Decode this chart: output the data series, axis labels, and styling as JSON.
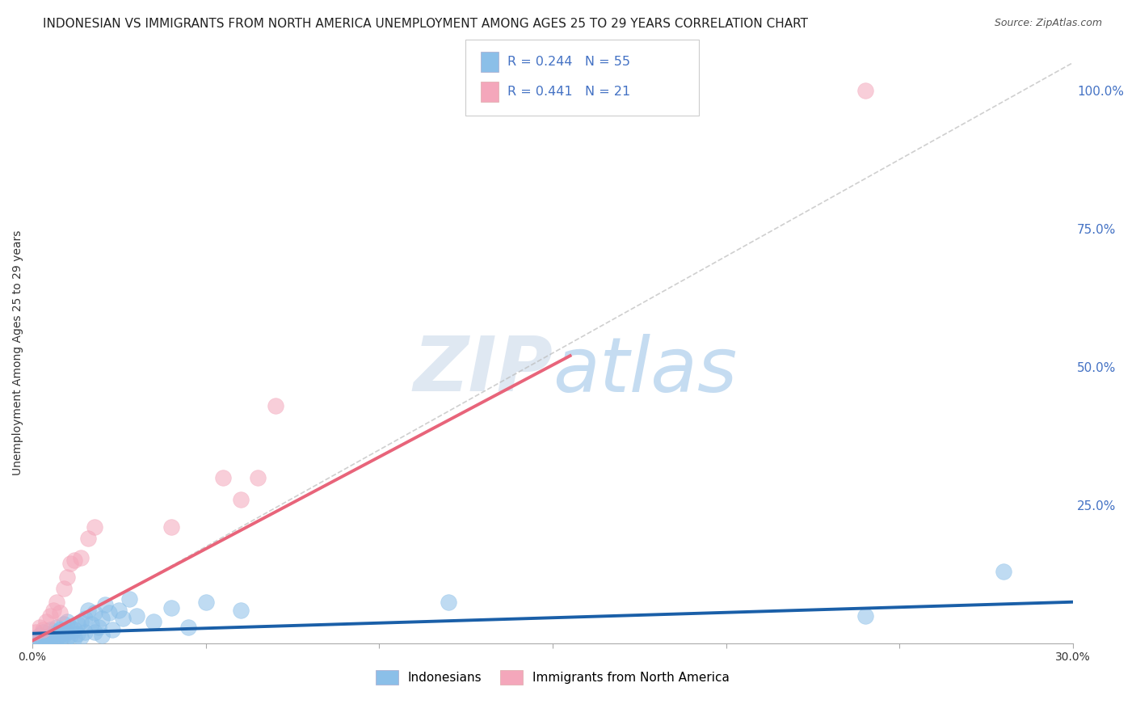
{
  "title": "INDONESIAN VS IMMIGRANTS FROM NORTH AMERICA UNEMPLOYMENT AMONG AGES 25 TO 29 YEARS CORRELATION CHART",
  "source": "Source: ZipAtlas.com",
  "ylabel": "Unemployment Among Ages 25 to 29 years",
  "xlim": [
    0.0,
    0.3
  ],
  "ylim": [
    0.0,
    1.05
  ],
  "xticks": [
    0.0,
    0.05,
    0.1,
    0.15,
    0.2,
    0.25,
    0.3
  ],
  "xticklabels": [
    "0.0%",
    "",
    "",
    "",
    "",
    "",
    "30.0%"
  ],
  "yticks_right": [
    0.0,
    0.25,
    0.5,
    0.75,
    1.0
  ],
  "yticklabels_right": [
    "",
    "25.0%",
    "50.0%",
    "75.0%",
    "100.0%"
  ],
  "legend3_label": "Indonesians",
  "legend4_label": "Immigrants from North America",
  "blue_color": "#8bbfe8",
  "pink_color": "#f4a7bb",
  "blue_line_color": "#1a5fa8",
  "pink_line_color": "#e8647a",
  "title_fontsize": 11,
  "axis_label_fontsize": 10,
  "tick_fontsize": 10,
  "watermark": "ZIPatlas",
  "blue_scatter_x": [
    0.001,
    0.002,
    0.002,
    0.003,
    0.003,
    0.004,
    0.004,
    0.005,
    0.005,
    0.005,
    0.006,
    0.006,
    0.007,
    0.007,
    0.007,
    0.008,
    0.008,
    0.008,
    0.009,
    0.009,
    0.01,
    0.01,
    0.01,
    0.011,
    0.011,
    0.012,
    0.012,
    0.013,
    0.013,
    0.014,
    0.014,
    0.015,
    0.015,
    0.016,
    0.017,
    0.018,
    0.018,
    0.019,
    0.02,
    0.02,
    0.021,
    0.022,
    0.023,
    0.025,
    0.026,
    0.028,
    0.03,
    0.035,
    0.04,
    0.045,
    0.05,
    0.06,
    0.12,
    0.24,
    0.28
  ],
  "blue_scatter_y": [
    0.01,
    0.005,
    0.015,
    0.008,
    0.02,
    0.005,
    0.012,
    0.008,
    0.015,
    0.025,
    0.01,
    0.018,
    0.01,
    0.02,
    0.03,
    0.008,
    0.015,
    0.025,
    0.015,
    0.035,
    0.01,
    0.02,
    0.04,
    0.015,
    0.03,
    0.01,
    0.025,
    0.018,
    0.035,
    0.012,
    0.04,
    0.02,
    0.045,
    0.06,
    0.035,
    0.02,
    0.055,
    0.03,
    0.015,
    0.045,
    0.07,
    0.055,
    0.025,
    0.06,
    0.045,
    0.08,
    0.05,
    0.04,
    0.065,
    0.03,
    0.075,
    0.06,
    0.075,
    0.05,
    0.13
  ],
  "pink_scatter_x": [
    0.001,
    0.002,
    0.003,
    0.004,
    0.005,
    0.006,
    0.007,
    0.008,
    0.009,
    0.01,
    0.011,
    0.012,
    0.014,
    0.016,
    0.018,
    0.04,
    0.055,
    0.06,
    0.065,
    0.07,
    0.24
  ],
  "pink_scatter_y": [
    0.02,
    0.03,
    0.025,
    0.04,
    0.05,
    0.06,
    0.075,
    0.055,
    0.1,
    0.12,
    0.145,
    0.15,
    0.155,
    0.19,
    0.21,
    0.21,
    0.3,
    0.26,
    0.3,
    0.43,
    1.0
  ],
  "blue_trend_x": [
    0.0,
    0.3
  ],
  "blue_trend_y": [
    0.018,
    0.075
  ],
  "pink_trend_x": [
    0.0,
    0.155
  ],
  "pink_trend_y": [
    0.005,
    0.52
  ],
  "ref_line_x": [
    0.0,
    0.3
  ],
  "ref_line_y": [
    0.0,
    1.05
  ],
  "background_color": "#ffffff",
  "grid_color": "#dddddd"
}
